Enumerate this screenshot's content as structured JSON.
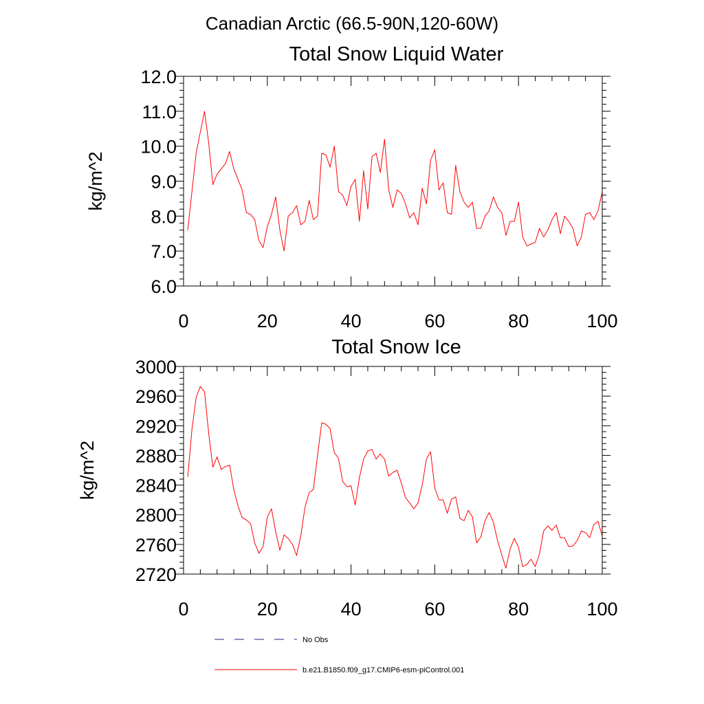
{
  "figure": {
    "title": "Canadian Arctic (66.5-90N,120-60W)"
  },
  "legend": {
    "items": [
      {
        "label": "No Obs",
        "color": "#1a237e",
        "style": "dashed"
      },
      {
        "label": "b.e21.B1850.f09_g17.CMIP6-esm-piControl.001",
        "color": "#ff0000",
        "style": "solid"
      }
    ]
  },
  "chart_data": [
    {
      "type": "line",
      "title": "Total Snow Liquid Water",
      "xlabel": "",
      "ylabel": "kg/m^2",
      "xlim": [
        0,
        100
      ],
      "ylim": [
        6.0,
        12.0
      ],
      "xticks": [
        0,
        20,
        40,
        60,
        80,
        100
      ],
      "yticks": [
        6.0,
        7.0,
        8.0,
        9.0,
        10.0,
        11.0,
        12.0
      ],
      "ytick_labels": [
        "6.0",
        "7.0",
        "8.0",
        "9.0",
        "10.0",
        "11.0",
        "12.0"
      ],
      "grid": false,
      "series": [
        {
          "name": "b.e21.B1850.f09_g17.CMIP6-esm-piControl.001",
          "color": "#ff0000",
          "x": [
            1,
            2,
            3,
            4,
            5,
            6,
            7,
            8,
            9,
            10,
            11,
            12,
            13,
            14,
            15,
            16,
            17,
            18,
            19,
            20,
            21,
            22,
            23,
            24,
            25,
            26,
            27,
            28,
            29,
            30,
            31,
            32,
            33,
            34,
            35,
            36,
            37,
            38,
            39,
            40,
            41,
            42,
            43,
            44,
            45,
            46,
            47,
            48,
            49,
            50,
            51,
            52,
            53,
            54,
            55,
            56,
            57,
            58,
            59,
            60,
            61,
            62,
            63,
            64,
            65,
            66,
            67,
            68,
            69,
            70,
            71,
            72,
            73,
            74,
            75,
            76,
            77,
            78,
            79,
            80,
            81,
            82,
            83,
            84,
            85,
            86,
            87,
            88,
            89,
            90,
            91,
            92,
            93,
            94,
            95,
            96,
            97,
            98,
            99,
            100
          ],
          "values": [
            7.6,
            8.7,
            9.8,
            10.4,
            11.0,
            10.1,
            8.9,
            9.2,
            9.35,
            9.5,
            9.85,
            9.35,
            9.05,
            8.75,
            8.1,
            8.05,
            7.9,
            7.3,
            7.1,
            7.7,
            8.05,
            8.55,
            7.6,
            7.0,
            8.0,
            8.1,
            8.3,
            7.75,
            7.85,
            8.45,
            7.9,
            8.0,
            9.8,
            9.75,
            9.4,
            10.0,
            8.7,
            8.6,
            8.3,
            8.85,
            9.05,
            7.85,
            9.3,
            8.2,
            9.7,
            9.8,
            9.25,
            10.2,
            8.75,
            8.25,
            8.75,
            8.65,
            8.35,
            7.95,
            8.1,
            7.75,
            8.8,
            8.35,
            9.6,
            9.9,
            8.75,
            8.95,
            8.1,
            8.05,
            9.45,
            8.7,
            8.4,
            8.25,
            8.4,
            7.65,
            7.65,
            8.0,
            8.15,
            8.55,
            8.25,
            8.1,
            7.45,
            7.85,
            7.85,
            8.4,
            7.4,
            7.15,
            7.2,
            7.25,
            7.65,
            7.4,
            7.6,
            7.9,
            8.1,
            7.5,
            8.0,
            7.85,
            7.65,
            7.15,
            7.4,
            8.05,
            8.1,
            7.9,
            8.15,
            8.7
          ]
        }
      ]
    },
    {
      "type": "line",
      "title": "Total Snow Ice",
      "xlabel": "",
      "ylabel": "kg/m^2",
      "xlim": [
        0,
        100
      ],
      "ylim": [
        2720,
        3000
      ],
      "xticks": [
        0,
        20,
        40,
        60,
        80,
        100
      ],
      "yticks": [
        2720,
        2760,
        2800,
        2840,
        2880,
        2920,
        2960,
        3000
      ],
      "ytick_labels": [
        "2720",
        "2760",
        "2800",
        "2840",
        "2880",
        "2920",
        "2960",
        "3000"
      ],
      "grid": false,
      "series": [
        {
          "name": "b.e21.B1850.f09_g17.CMIP6-esm-piControl.001",
          "color": "#ff0000",
          "x": [
            1,
            2,
            3,
            4,
            5,
            6,
            7,
            8,
            9,
            10,
            11,
            12,
            13,
            14,
            15,
            16,
            17,
            18,
            19,
            20,
            21,
            22,
            23,
            24,
            25,
            26,
            27,
            28,
            29,
            30,
            31,
            32,
            33,
            34,
            35,
            36,
            37,
            38,
            39,
            40,
            41,
            42,
            43,
            44,
            45,
            46,
            47,
            48,
            49,
            50,
            51,
            52,
            53,
            54,
            55,
            56,
            57,
            58,
            59,
            60,
            61,
            62,
            63,
            64,
            65,
            66,
            67,
            68,
            69,
            70,
            71,
            72,
            73,
            74,
            75,
            76,
            77,
            78,
            79,
            80,
            81,
            82,
            83,
            84,
            85,
            86,
            87,
            88,
            89,
            90,
            91,
            92,
            93,
            94,
            95,
            96,
            97,
            98,
            99,
            100
          ],
          "values": [
            2851,
            2915,
            2958,
            2973,
            2966,
            2910,
            2864,
            2878,
            2861,
            2865,
            2867,
            2834,
            2812,
            2796,
            2793,
            2788,
            2762,
            2748,
            2757,
            2797,
            2808,
            2777,
            2752,
            2773,
            2768,
            2760,
            2745,
            2772,
            2810,
            2830,
            2834,
            2880,
            2924,
            2922,
            2916,
            2884,
            2876,
            2845,
            2838,
            2839,
            2813,
            2850,
            2875,
            2886,
            2888,
            2875,
            2882,
            2875,
            2852,
            2857,
            2860,
            2843,
            2823,
            2816,
            2808,
            2816,
            2840,
            2875,
            2885,
            2836,
            2820,
            2820,
            2802,
            2821,
            2824,
            2795,
            2792,
            2806,
            2797,
            2762,
            2770,
            2792,
            2803,
            2790,
            2765,
            2746,
            2728,
            2754,
            2768,
            2756,
            2730,
            2733,
            2740,
            2730,
            2747,
            2778,
            2785,
            2779,
            2786,
            2769,
            2769,
            2757,
            2758,
            2765,
            2778,
            2776,
            2769,
            2787,
            2791,
            2771
          ]
        }
      ]
    }
  ]
}
